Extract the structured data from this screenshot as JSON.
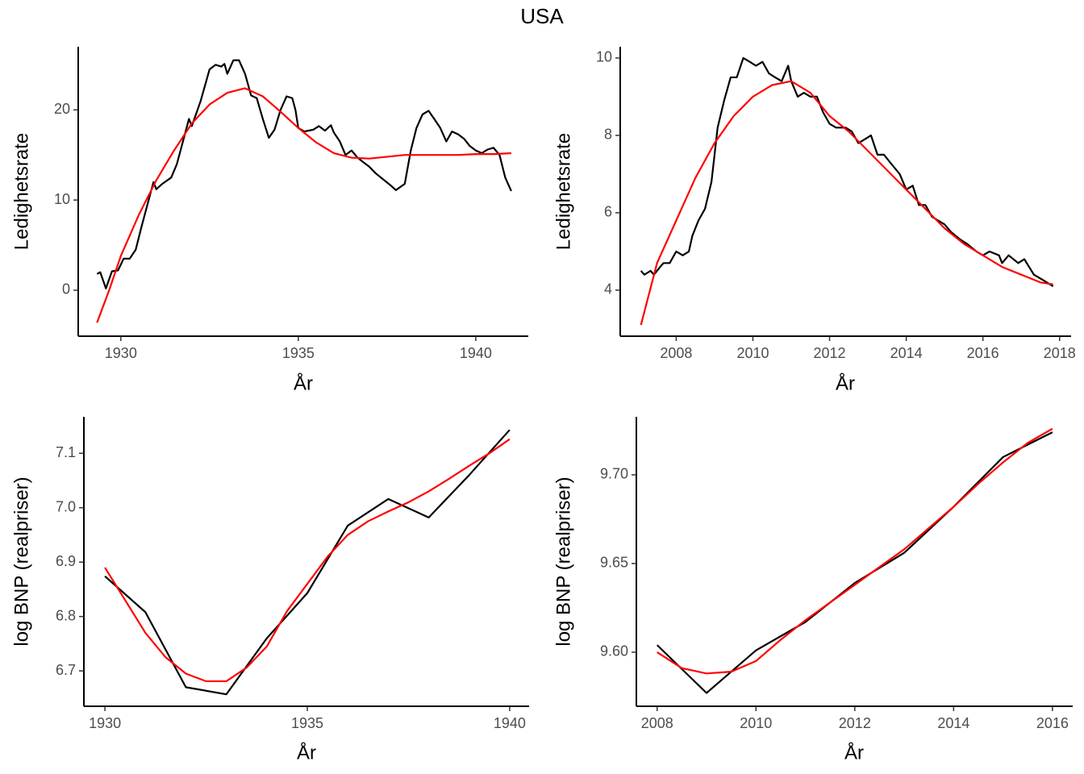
{
  "title": "USA",
  "chart_data": [
    {
      "type": "line",
      "xlabel": "År",
      "ylabel": "Ledighetsrate",
      "xlim": [
        1928.8,
        1941.48
      ],
      "ylim": [
        -5.1,
        27
      ],
      "xticks": [
        1930,
        1935,
        1940
      ],
      "yticks": [
        0,
        10,
        20
      ],
      "series": [
        {
          "color": "#000000",
          "x": [
            1929.33,
            1929.42,
            1929.58,
            1929.75,
            1929.92,
            1930.08,
            1930.25,
            1930.42,
            1930.58,
            1930.75,
            1930.92,
            1931.0,
            1931.17,
            1931.42,
            1931.58,
            1931.75,
            1931.92,
            1932.0,
            1932.25,
            1932.5,
            1932.67,
            1932.83,
            1932.92,
            1933.0,
            1933.17,
            1933.33,
            1933.5,
            1933.67,
            1933.83,
            1934.0,
            1934.17,
            1934.33,
            1934.5,
            1934.67,
            1934.83,
            1934.92,
            1935.0,
            1935.17,
            1935.42,
            1935.58,
            1935.75,
            1935.92,
            1936.0,
            1936.17,
            1936.33,
            1936.5,
            1936.67,
            1936.83,
            1937.0,
            1937.17,
            1937.42,
            1937.58,
            1937.75,
            1938.0,
            1938.17,
            1938.33,
            1938.5,
            1938.67,
            1938.83,
            1939.0,
            1939.17,
            1939.33,
            1939.5,
            1939.67,
            1939.83,
            1940.0,
            1940.17,
            1940.33,
            1940.5,
            1940.67,
            1940.83,
            1941.0
          ],
          "values": [
            1.8,
            2.0,
            0.2,
            2.1,
            2.2,
            3.5,
            3.5,
            4.5,
            7,
            9.5,
            12,
            11.2,
            11.8,
            12.5,
            14,
            16.5,
            19,
            18.2,
            21,
            24.5,
            25,
            24.8,
            25.1,
            24,
            25.5,
            25.5,
            24,
            21.6,
            21.3,
            19,
            16.9,
            17.8,
            20,
            21.5,
            21.3,
            20,
            18,
            17.6,
            17.8,
            18.2,
            17.7,
            18.3,
            17.5,
            16.5,
            15,
            15.5,
            14.7,
            14.2,
            13.7,
            13,
            12.2,
            11.7,
            11.1,
            11.8,
            15.5,
            18,
            19.5,
            19.9,
            19,
            18,
            16.5,
            17.6,
            17.3,
            16.8,
            16,
            15.5,
            15.2,
            15.6,
            15.8,
            15,
            12.5,
            11
          ]
        },
        {
          "color": "#ff0000",
          "x": [
            1929.33,
            1929.67,
            1930,
            1930.5,
            1931,
            1931.5,
            1932,
            1932.5,
            1933,
            1933.5,
            1934,
            1934.5,
            1935,
            1935.5,
            1936,
            1936.5,
            1937,
            1937.5,
            1938,
            1938.5,
            1939,
            1939.5,
            1940,
            1940.5,
            1941
          ],
          "values": [
            -3.6,
            0,
            3.8,
            8.3,
            12.2,
            15.5,
            18.5,
            20.6,
            21.9,
            22.4,
            21.5,
            19.8,
            18,
            16.4,
            15.2,
            14.7,
            14.6,
            14.8,
            15,
            15,
            15,
            15,
            15.1,
            15.1,
            15.2
          ]
        }
      ]
    },
    {
      "type": "line",
      "xlabel": "År",
      "ylabel": "Ledighetsrate",
      "xlim": [
        2006.54,
        2018.3
      ],
      "ylim": [
        2.81,
        10.29
      ],
      "xticks": [
        2008,
        2010,
        2012,
        2014,
        2016,
        2018
      ],
      "yticks": [
        4,
        6,
        8,
        10
      ],
      "series": [
        {
          "color": "#000000",
          "x": [
            2007.08,
            2007.17,
            2007.33,
            2007.42,
            2007.58,
            2007.67,
            2007.83,
            2008.0,
            2008.17,
            2008.33,
            2008.42,
            2008.58,
            2008.75,
            2008.92,
            2009.08,
            2009.25,
            2009.42,
            2009.58,
            2009.75,
            2009.92,
            2010.08,
            2010.25,
            2010.42,
            2010.58,
            2010.75,
            2010.92,
            2011.0,
            2011.17,
            2011.33,
            2011.5,
            2011.67,
            2011.83,
            2012.0,
            2012.17,
            2012.42,
            2012.58,
            2012.75,
            2012.92,
            2013.08,
            2013.25,
            2013.42,
            2013.58,
            2013.83,
            2014.0,
            2014.17,
            2014.33,
            2014.5,
            2014.67,
            2014.83,
            2015.0,
            2015.17,
            2015.42,
            2015.58,
            2015.83,
            2016.0,
            2016.17,
            2016.42,
            2016.5,
            2016.67,
            2016.92,
            2017.08,
            2017.33,
            2017.5,
            2017.67,
            2017.83
          ],
          "values": [
            4.5,
            4.4,
            4.5,
            4.4,
            4.6,
            4.7,
            4.7,
            5.0,
            4.9,
            5.0,
            5.4,
            5.8,
            6.1,
            6.8,
            8.2,
            8.9,
            9.5,
            9.5,
            10.0,
            9.9,
            9.8,
            9.9,
            9.6,
            9.5,
            9.4,
            9.8,
            9.4,
            9.0,
            9.1,
            9.0,
            9.0,
            8.6,
            8.3,
            8.2,
            8.2,
            8.1,
            7.8,
            7.9,
            8.0,
            7.5,
            7.5,
            7.3,
            7.0,
            6.6,
            6.7,
            6.2,
            6.2,
            5.9,
            5.8,
            5.7,
            5.5,
            5.3,
            5.2,
            5.0,
            4.9,
            5.0,
            4.9,
            4.7,
            4.9,
            4.7,
            4.8,
            4.4,
            4.3,
            4.2,
            4.1
          ]
        },
        {
          "color": "#ff0000",
          "x": [
            2007.08,
            2007.5,
            2008,
            2008.5,
            2009,
            2009.5,
            2010,
            2010.5,
            2011,
            2011.5,
            2012,
            2012.5,
            2013,
            2013.5,
            2014,
            2014.5,
            2015,
            2015.5,
            2016,
            2016.5,
            2017,
            2017.5,
            2017.83
          ],
          "values": [
            3.1,
            4.7,
            5.8,
            6.9,
            7.8,
            8.5,
            9.0,
            9.3,
            9.4,
            9.1,
            8.5,
            8.1,
            7.6,
            7.1,
            6.6,
            6.1,
            5.6,
            5.2,
            4.9,
            4.6,
            4.4,
            4.2,
            4.15
          ]
        }
      ]
    },
    {
      "type": "line",
      "xlabel": "År",
      "ylabel": "log BNP (realpriser)",
      "xlim": [
        1929.48,
        1940.48
      ],
      "ylim": [
        6.635,
        7.167
      ],
      "xticks": [
        1930,
        1935,
        1940
      ],
      "yticks": [
        6.7,
        6.8,
        6.9,
        {
          "value": 7,
          "label": "7.0"
        },
        7.1
      ],
      "series": [
        {
          "color": "#000000",
          "x": [
            1930,
            1931,
            1932,
            1933,
            1934,
            1935,
            1936,
            1937,
            1938,
            1939,
            1940
          ],
          "values": [
            6.874,
            6.808,
            6.67,
            6.657,
            6.76,
            6.843,
            6.967,
            7.016,
            6.982,
            7.06,
            7.143
          ]
        },
        {
          "color": "#ff0000",
          "x": [
            1930,
            1930.5,
            1931,
            1931.5,
            1932,
            1932.5,
            1933,
            1933.5,
            1934,
            1934.5,
            1935,
            1935.5,
            1936,
            1936.5,
            1937,
            1937.5,
            1938,
            1938.5,
            1939,
            1939.5,
            1940
          ],
          "values": [
            6.89,
            6.83,
            6.77,
            6.725,
            6.695,
            6.681,
            6.681,
            6.706,
            6.745,
            6.81,
            6.86,
            6.91,
            6.95,
            6.975,
            6.993,
            7.01,
            7.03,
            7.053,
            7.077,
            7.1,
            7.126
          ]
        }
      ]
    },
    {
      "type": "line",
      "xlabel": "År",
      "ylabel": "log BNP (realpriser)",
      "xlim": [
        2007.58,
        2016.41
      ],
      "ylim": [
        9.5695,
        9.7327
      ],
      "xticks": [
        2008,
        2010,
        2012,
        2014,
        2016
      ],
      "yticks": [
        {
          "value": 9.6,
          "label": "9.60"
        },
        9.65,
        {
          "value": 9.7,
          "label": "9.70"
        }
      ],
      "series": [
        {
          "color": "#000000",
          "x": [
            2008,
            2009,
            2010,
            2011,
            2012,
            2013,
            2014,
            2015,
            2016
          ],
          "values": [
            9.604,
            9.577,
            9.601,
            9.617,
            9.639,
            9.656,
            9.682,
            9.71,
            9.724
          ]
        },
        {
          "color": "#ff0000",
          "x": [
            2008,
            2008.5,
            2009,
            2009.5,
            2010,
            2010.5,
            2011,
            2011.5,
            2012,
            2012.5,
            2013,
            2013.5,
            2014,
            2014.5,
            2015,
            2015.5,
            2016
          ],
          "values": [
            9.6,
            9.591,
            9.588,
            9.589,
            9.595,
            9.607,
            9.618,
            9.628,
            9.638,
            9.648,
            9.658,
            9.67,
            9.682,
            9.695,
            9.707,
            9.718,
            9.726
          ]
        }
      ]
    }
  ]
}
